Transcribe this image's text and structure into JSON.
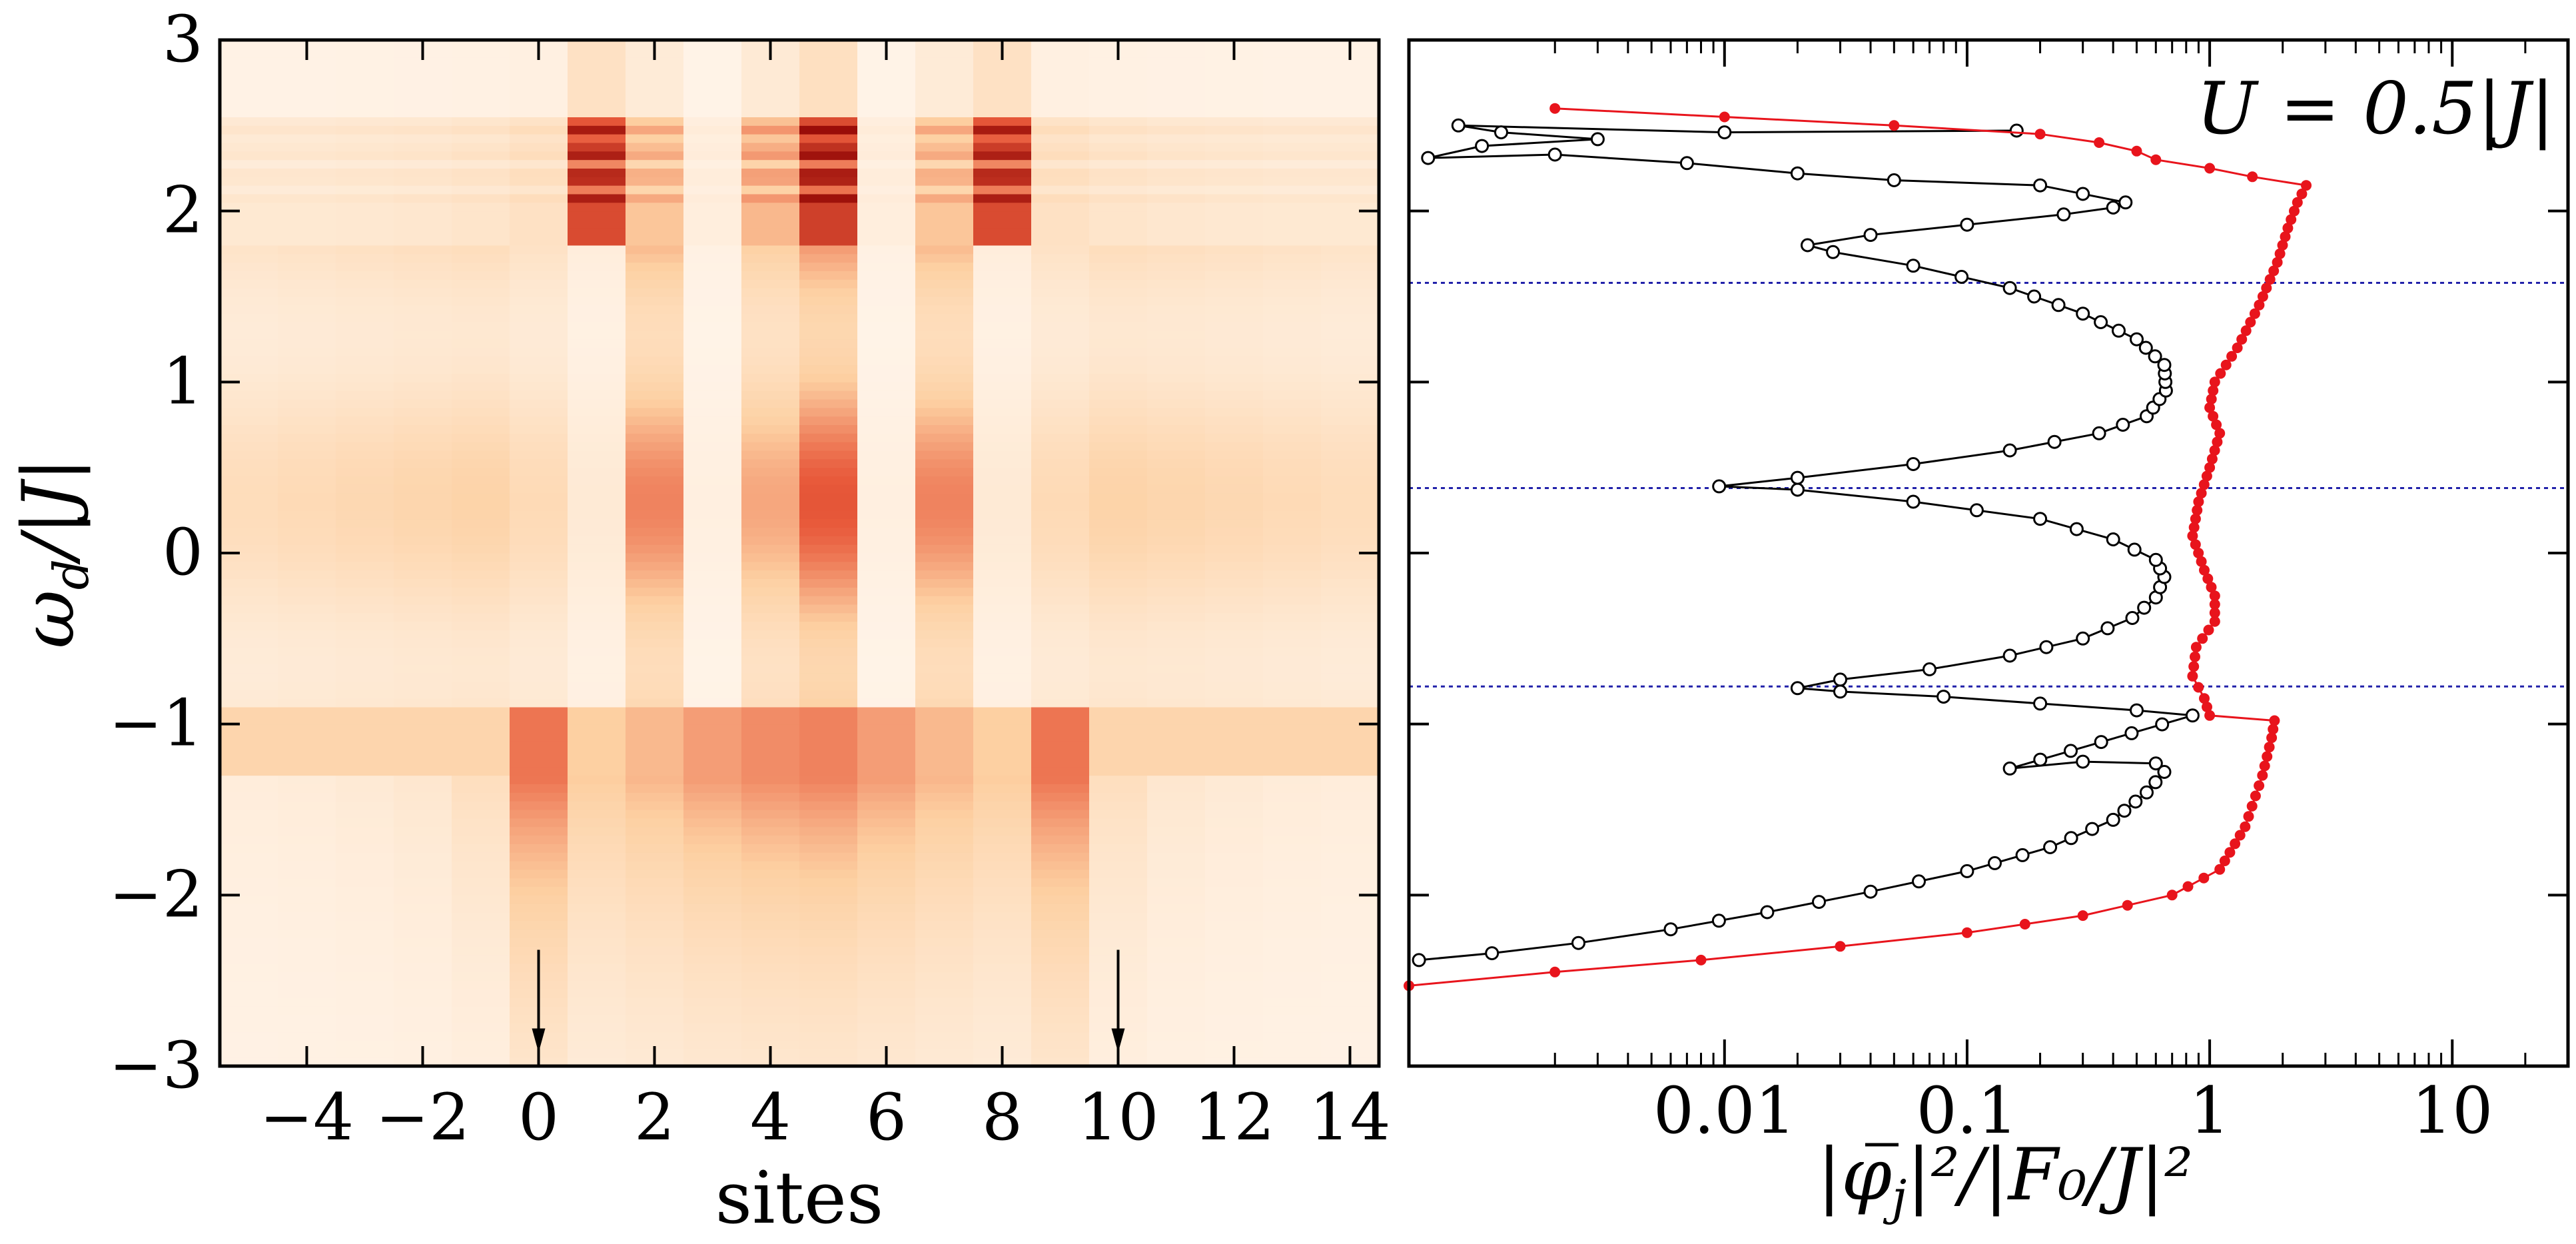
{
  "chart_data": [
    {
      "type": "heatmap",
      "title": "",
      "xlabel": "sites",
      "ylabel_parts": {
        "main": "ω",
        "sub": "d",
        "rest": "/|J|"
      },
      "xlim": [
        -5.5,
        14.5
      ],
      "ylim": [
        -3,
        3
      ],
      "x_ticks": [
        -4,
        -2,
        0,
        2,
        4,
        6,
        8,
        10,
        12,
        14
      ],
      "x_tick_labels": [
        "−4",
        "−2",
        "0",
        "2",
        "4",
        "6",
        "8",
        "10",
        "12",
        "14"
      ],
      "y_ticks": [
        -3,
        -2,
        -1,
        0,
        1,
        2,
        3
      ],
      "y_tick_labels": [
        "−3",
        "−2",
        "−1",
        "0",
        "1",
        "2",
        "3"
      ],
      "colormap": [
        "#fff5eb",
        "#fdd0a2",
        "#e8593a",
        "#8c0000"
      ],
      "arrows_at_sites": [
        0,
        10
      ],
      "columns": [
        {
          "site": -5,
          "band_low": 0.06,
          "band_mid": 0.22,
          "band_high": 0.14
        },
        {
          "site": -4,
          "band_low": 0.07,
          "band_mid": 0.24,
          "band_high": 0.14
        },
        {
          "site": -3,
          "band_low": 0.09,
          "band_mid": 0.26,
          "band_high": 0.15
        },
        {
          "site": -2,
          "band_low": 0.12,
          "band_mid": 0.28,
          "band_high": 0.16
        },
        {
          "site": -1,
          "band_low": 0.2,
          "band_mid": 0.3,
          "band_high": 0.18
        },
        {
          "site": 0,
          "band_low": 0.62,
          "band_mid": 0.24,
          "band_high": 0.22
        },
        {
          "site": 1,
          "band_low": 0.35,
          "band_mid": 0.1,
          "band_high": 0.9
        },
        {
          "site": 2,
          "band_low": 0.42,
          "band_mid": 0.55,
          "band_high": 0.45
        },
        {
          "site": 3,
          "band_low": 0.5,
          "band_mid": 0.05,
          "band_high": 0.08
        },
        {
          "site": 4,
          "band_low": 0.55,
          "band_mid": 0.45,
          "band_high": 0.5
        },
        {
          "site": 5,
          "band_low": 0.58,
          "band_mid": 0.68,
          "band_high": 0.95
        },
        {
          "site": 6,
          "band_low": 0.5,
          "band_mid": 0.05,
          "band_high": 0.08
        },
        {
          "site": 7,
          "band_low": 0.42,
          "band_mid": 0.55,
          "band_high": 0.45
        },
        {
          "site": 8,
          "band_low": 0.35,
          "band_mid": 0.1,
          "band_high": 0.9
        },
        {
          "site": 9,
          "band_low": 0.62,
          "band_mid": 0.24,
          "band_high": 0.22
        },
        {
          "site": 10,
          "band_low": 0.2,
          "band_mid": 0.3,
          "band_high": 0.18
        },
        {
          "site": 11,
          "band_low": 0.12,
          "band_mid": 0.28,
          "band_high": 0.16
        },
        {
          "site": 12,
          "band_low": 0.09,
          "band_mid": 0.26,
          "band_high": 0.15
        },
        {
          "site": 13,
          "band_low": 0.07,
          "band_mid": 0.24,
          "band_high": 0.14
        },
        {
          "site": 14,
          "band_low": 0.06,
          "band_mid": 0.22,
          "band_high": 0.14
        }
      ]
    },
    {
      "type": "line",
      "annotation": "U = 0.5|J|",
      "xlabel_parts": {
        "pre": "|",
        "main": "φ",
        "sub": "j",
        "rest": "|²/|F₀/J|²"
      },
      "x_scale": "log",
      "xlim": [
        0.0005,
        30
      ],
      "ylim": [
        -3,
        3
      ],
      "x_ticks": [
        0.01,
        0.1,
        1,
        10
      ],
      "x_tick_labels": [
        "0.01",
        "0.1",
        "1",
        "10"
      ],
      "y_ticks": [
        -3,
        -2,
        -1,
        0,
        1,
        2,
        3
      ],
      "hlines": [
        1.58,
        0.38,
        -0.78
      ],
      "hline_color": "#2222aa",
      "series": [
        {
          "color": "#000000",
          "marker": "open-circle",
          "points": [
            [
              0.00055,
              -2.38
            ],
            [
              0.0011,
              -2.34
            ],
            [
              0.0025,
              -2.28
            ],
            [
              0.006,
              -2.2
            ],
            [
              0.015,
              -2.1
            ],
            [
              0.04,
              -1.98
            ],
            [
              0.1,
              -1.86
            ],
            [
              0.22,
              -1.72
            ],
            [
              0.4,
              -1.56
            ],
            [
              0.55,
              -1.4
            ],
            [
              0.65,
              -1.28
            ],
            [
              0.6,
              -1.23
            ],
            [
              0.3,
              -1.22
            ],
            [
              0.15,
              -1.26
            ],
            [
              0.85,
              -0.95
            ],
            [
              0.5,
              -0.92
            ],
            [
              0.2,
              -0.88
            ],
            [
              0.08,
              -0.84
            ],
            [
              0.03,
              -0.81
            ],
            [
              0.02,
              -0.79
            ],
            [
              0.03,
              -0.74
            ],
            [
              0.07,
              -0.68
            ],
            [
              0.15,
              -0.6
            ],
            [
              0.3,
              -0.5
            ],
            [
              0.48,
              -0.38
            ],
            [
              0.6,
              -0.26
            ],
            [
              0.65,
              -0.14
            ],
            [
              0.6,
              -0.04
            ],
            [
              0.4,
              0.08
            ],
            [
              0.2,
              0.2
            ],
            [
              0.06,
              0.3
            ],
            [
              0.02,
              0.37
            ],
            [
              0.0095,
              0.39
            ],
            [
              0.02,
              0.44
            ],
            [
              0.06,
              0.52
            ],
            [
              0.15,
              0.6
            ],
            [
              0.35,
              0.7
            ],
            [
              0.55,
              0.8
            ],
            [
              0.66,
              0.95
            ],
            [
              0.65,
              1.1
            ],
            [
              0.5,
              1.25
            ],
            [
              0.3,
              1.4
            ],
            [
              0.15,
              1.55
            ],
            [
              0.06,
              1.68
            ],
            [
              0.028,
              1.76
            ],
            [
              0.022,
              1.8
            ],
            [
              0.04,
              1.86
            ],
            [
              0.1,
              1.92
            ],
            [
              0.25,
              1.98
            ],
            [
              0.4,
              2.02
            ],
            [
              0.45,
              2.05
            ],
            [
              0.2,
              2.15
            ],
            [
              0.05,
              2.18
            ],
            [
              0.02,
              2.22
            ],
            [
              0.007,
              2.28
            ],
            [
              0.002,
              2.33
            ],
            [
              0.0006,
              2.31
            ],
            [
              0.001,
              2.38
            ],
            [
              0.003,
              2.42
            ],
            [
              0.0012,
              2.46
            ],
            [
              0.0008,
              2.5
            ],
            [
              0.01,
              2.46
            ],
            [
              0.16,
              2.47
            ]
          ]
        },
        {
          "color": "#e8141c",
          "marker": "filled-circle",
          "points": [
            [
              0.0005,
              -2.53
            ],
            [
              0.002,
              -2.45
            ],
            [
              0.008,
              -2.38
            ],
            [
              0.03,
              -2.3
            ],
            [
              0.1,
              -2.22
            ],
            [
              0.3,
              -2.12
            ],
            [
              0.7,
              -2.0
            ],
            [
              1.1,
              -1.85
            ],
            [
              1.4,
              -1.6
            ],
            [
              1.65,
              -1.3
            ],
            [
              1.8,
              -1.08
            ],
            [
              1.85,
              -0.98
            ],
            [
              1.0,
              -0.95
            ],
            [
              0.95,
              -0.85
            ],
            [
              0.85,
              -0.72
            ],
            [
              0.88,
              -0.55
            ],
            [
              1.05,
              -0.4
            ],
            [
              1.05,
              -0.25
            ],
            [
              0.95,
              -0.1
            ],
            [
              0.85,
              0.1
            ],
            [
              0.9,
              0.3
            ],
            [
              1.0,
              0.5
            ],
            [
              1.1,
              0.7
            ],
            [
              1.0,
              0.85
            ],
            [
              1.05,
              1.0
            ],
            [
              1.3,
              1.2
            ],
            [
              1.6,
              1.45
            ],
            [
              1.9,
              1.7
            ],
            [
              2.1,
              1.9
            ],
            [
              2.3,
              2.05
            ],
            [
              2.5,
              2.15
            ],
            [
              1.5,
              2.2
            ],
            [
              1.0,
              2.25
            ],
            [
              0.6,
              2.3
            ],
            [
              0.5,
              2.35
            ],
            [
              0.35,
              2.4
            ],
            [
              0.2,
              2.45
            ],
            [
              0.05,
              2.5
            ],
            [
              0.002,
              2.6
            ]
          ]
        }
      ]
    }
  ]
}
